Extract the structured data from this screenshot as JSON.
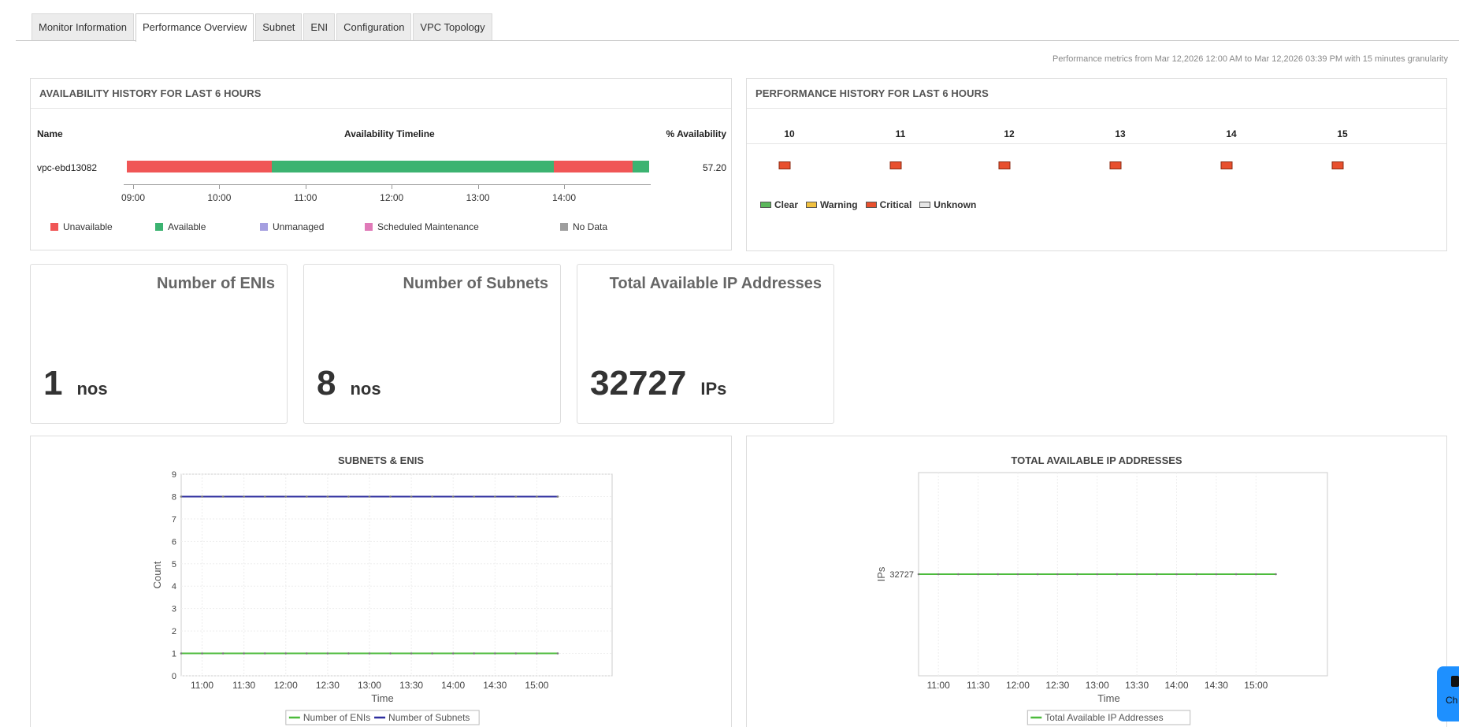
{
  "tabs": [
    {
      "label": "Monitor Information",
      "active": false
    },
    {
      "label": "Performance Overview",
      "active": true
    },
    {
      "label": "Subnet",
      "active": false
    },
    {
      "label": "ENI",
      "active": false
    },
    {
      "label": "Configuration",
      "active": false
    },
    {
      "label": "VPC Topology",
      "active": false
    }
  ],
  "metrics_note": "Performance metrics from Mar 12,2026 12:00 AM to Mar 12,2026 03:39 PM with 15 minutes granularity",
  "availability": {
    "title": "AVAILABILITY HISTORY FOR LAST 6 HOURS",
    "col_name": "Name",
    "col_timeline": "Availability Timeline",
    "col_pct": "% Availability",
    "row": {
      "name": "vpc-ebd13082",
      "pct": "57.20"
    },
    "segments": [
      {
        "state": "Unavailable",
        "share": 0.277
      },
      {
        "state": "Available",
        "share": 0.54
      },
      {
        "state": "Unavailable",
        "share": 0.152
      },
      {
        "state": "Available",
        "share": 0.031
      }
    ],
    "ticks": [
      "09:00",
      "10:00",
      "11:00",
      "12:00",
      "13:00",
      "14:00"
    ],
    "legend": [
      {
        "label": "Unavailable",
        "color": "#f05656"
      },
      {
        "label": "Available",
        "color": "#3cb371"
      },
      {
        "label": "Unmanaged",
        "color": "#a59fe0"
      },
      {
        "label": "Scheduled Maintenance",
        "color": "#e07ab8"
      },
      {
        "label": "No Data",
        "color": "#9e9e9e"
      }
    ]
  },
  "performance": {
    "title": "PERFORMANCE HISTORY FOR LAST 6 HOURS",
    "hours": [
      "10",
      "11",
      "12",
      "13",
      "14",
      "15"
    ],
    "status": "Critical",
    "legend": [
      {
        "label": "Clear",
        "color": "#5cb85c"
      },
      {
        "label": "Warning",
        "color": "#f0c040"
      },
      {
        "label": "Critical",
        "color": "#e8502e"
      },
      {
        "label": "Unknown",
        "color": "#e6e6e6"
      }
    ]
  },
  "kpis": [
    {
      "title": "Number of ENIs",
      "value": "1",
      "unit": "nos"
    },
    {
      "title": "Number of Subnets",
      "value": "8",
      "unit": "nos"
    },
    {
      "title": "Total Available IP Addresses",
      "value": "32727",
      "unit": "IPs"
    }
  ],
  "chart_data": [
    {
      "type": "line",
      "title": "SUBNETS & ENIS",
      "xlabel": "Time",
      "ylabel": "Count",
      "ylim": [
        0,
        9
      ],
      "yticks": [
        "0",
        "1",
        "2",
        "3",
        "4",
        "5",
        "6",
        "7",
        "8",
        "9"
      ],
      "xticks": [
        "11:00",
        "11:30",
        "12:00",
        "12:30",
        "13:00",
        "13:30",
        "14:00",
        "14:30",
        "15:00"
      ],
      "x": [
        "10:45",
        "11:00",
        "11:15",
        "11:30",
        "11:45",
        "12:00",
        "12:15",
        "12:30",
        "12:45",
        "13:00",
        "13:15",
        "13:30",
        "13:45",
        "14:00",
        "14:15",
        "14:30",
        "14:45",
        "15:00",
        "15:15"
      ],
      "grid": true,
      "legend_position": "bottom",
      "series": [
        {
          "name": "Number of ENIs",
          "color": "#4cbb3c",
          "values": [
            1,
            1,
            1,
            1,
            1,
            1,
            1,
            1,
            1,
            1,
            1,
            1,
            1,
            1,
            1,
            1,
            1,
            1,
            1
          ]
        },
        {
          "name": "Number of Subnets",
          "color": "#2e2e9e",
          "values": [
            8,
            8,
            8,
            8,
            8,
            8,
            8,
            8,
            8,
            8,
            8,
            8,
            8,
            8,
            8,
            8,
            8,
            8,
            8
          ]
        }
      ]
    },
    {
      "type": "line",
      "title": "TOTAL AVAILABLE IP ADDRESSES",
      "xlabel": "Time",
      "ylabel": "IPs",
      "yticks": [
        "32727"
      ],
      "xticks": [
        "11:00",
        "11:30",
        "12:00",
        "12:30",
        "13:00",
        "13:30",
        "14:00",
        "14:30",
        "15:00"
      ],
      "x": [
        "10:45",
        "11:00",
        "11:15",
        "11:30",
        "11:45",
        "12:00",
        "12:15",
        "12:30",
        "12:45",
        "13:00",
        "13:15",
        "13:30",
        "13:45",
        "14:00",
        "14:15",
        "14:30",
        "14:45",
        "15:00",
        "15:15"
      ],
      "grid": true,
      "legend_position": "bottom",
      "series": [
        {
          "name": "Total Available IP Addresses",
          "color": "#4cbb3c",
          "values": [
            32727,
            32727,
            32727,
            32727,
            32727,
            32727,
            32727,
            32727,
            32727,
            32727,
            32727,
            32727,
            32727,
            32727,
            32727,
            32727,
            32727,
            32727,
            32727
          ]
        }
      ]
    }
  ],
  "chat_button": {
    "label": "Ch"
  }
}
